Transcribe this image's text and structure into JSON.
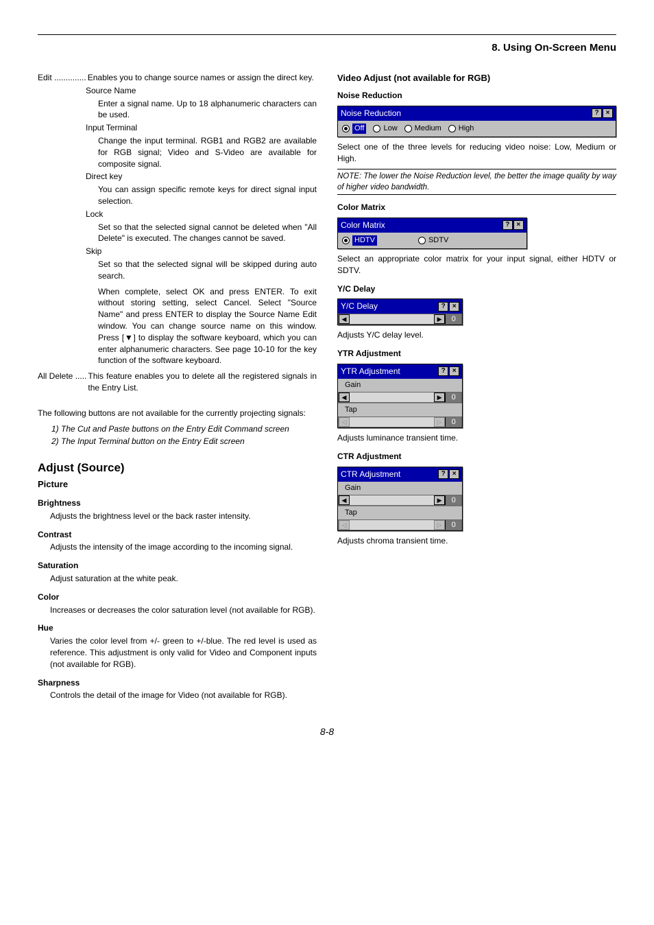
{
  "chapter": "8. Using On-Screen Menu",
  "left": {
    "edit": {
      "label": "Edit",
      "dots": "..............",
      "text": "Enables you to change source names or assign the direct key.",
      "items": [
        {
          "title": "Source Name",
          "body": "Enter a signal name. Up to 18 alphanumeric characters can be used."
        },
        {
          "title": "Input Terminal",
          "body": "Change the input terminal. RGB1 and RGB2 are available for RGB signal; Video and S-Video are available for composite signal."
        },
        {
          "title": "Direct key",
          "body": "You can assign specific remote keys for direct signal input selection."
        },
        {
          "title": "Lock",
          "body": "Set so that the selected signal cannot be deleted when \"All Delete\" is executed. The changes cannot be saved."
        },
        {
          "title": "Skip",
          "body": "Set so that the selected signal will be skipped during auto search."
        }
      ],
      "skip_extra": "When complete, select OK and press ENTER. To exit without storing setting, select Cancel. Select \"Source Name\" and press ENTER to display the Source Name Edit window. You can change source name on this window. Press [▼] to display the software keyboard, which you can enter alphanumeric characters. See page 10-10 for the key function of the software keyboard."
    },
    "alldelete": {
      "label": "All Delete",
      "dots": ".....",
      "text": "This feature enables you to delete all the registered signals in the Entry List."
    },
    "not_avail_intro": "The following buttons are not available for the currently projecting signals:",
    "not_avail_1": "1) The Cut and Paste buttons on the Entry Edit Command screen",
    "not_avail_2": "2) The Input Terminal button on the Entry Edit screen",
    "adjust_title": "Adjust (Source)",
    "picture_title": "Picture",
    "picture_items": [
      {
        "h": "Brightness",
        "b": "Adjusts the brightness level or the back raster intensity."
      },
      {
        "h": "Contrast",
        "b": "Adjusts the intensity of the image according to the incoming signal."
      },
      {
        "h": "Saturation",
        "b": "Adjust saturation at the white peak."
      },
      {
        "h": "Color",
        "b": "Increases or decreases the color saturation level (not available for RGB)."
      },
      {
        "h": "Hue",
        "b": "Varies the color level from +/- green to +/-blue. The red level is used as reference. This adjustment is only valid for Video and Component inputs (not available for RGB)."
      },
      {
        "h": "Sharpness",
        "b": "Controls the detail of the image for Video (not available for RGB)."
      }
    ]
  },
  "right": {
    "video_adjust_title": "Video Adjust (not available for RGB)",
    "noise": {
      "h": "Noise Reduction",
      "dialog_title": "Noise Reduction",
      "opts": [
        "Off",
        "Low",
        "Medium",
        "High"
      ],
      "selected": "Off",
      "text": "Select one of the three levels for reducing video noise: Low, Medium or High.",
      "note": "NOTE: The lower the Noise Reduction level, the better the image quality by way of higher video bandwidth."
    },
    "color_matrix": {
      "h": "Color Matrix",
      "dialog_title": "Color Matrix",
      "opts": [
        "HDTV",
        "SDTV"
      ],
      "selected": "HDTV",
      "text": "Select an appropriate color matrix for your input signal, either HDTV or SDTV."
    },
    "yc": {
      "h": "Y/C Delay",
      "dialog_title": "Y/C Delay",
      "val": "0",
      "text": "Adjusts Y/C delay level."
    },
    "ytr": {
      "h": "YTR Adjustment",
      "dialog_title": "YTR Adjustment",
      "row1": "Gain",
      "val1": "0",
      "row2": "Tap",
      "val2": "0",
      "text": "Adjusts luminance transient time."
    },
    "ctr": {
      "h": "CTR Adjustment",
      "dialog_title": "CTR Adjustment",
      "row1": "Gain",
      "val1": "0",
      "row2": "Tap",
      "val2": "0",
      "text": "Adjusts chroma transient time."
    }
  },
  "page_num": "8-8",
  "colors": {
    "titlebar": "#0000a8",
    "dialog_bg": "#c0c0c0"
  }
}
